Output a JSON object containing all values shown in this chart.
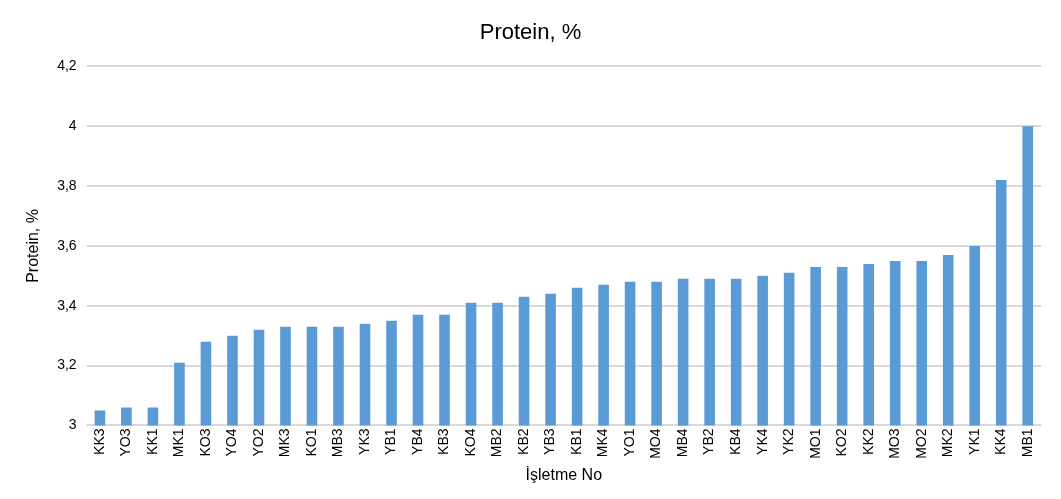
{
  "chart_data": {
    "type": "bar",
    "title": "Protein, %",
    "xlabel": "İşletme No",
    "ylabel": "Protein, %",
    "categories": [
      "KK3",
      "YO3",
      "KK1",
      "MK1",
      "KO3",
      "YO4",
      "YO2",
      "MK3",
      "KO1",
      "MB3",
      "YK3",
      "YB1",
      "YB4",
      "KB3",
      "KO4",
      "MB2",
      "KB2",
      "YB3",
      "KB1",
      "MK4",
      "YO1",
      "MO4",
      "MB4",
      "YB2",
      "KB4",
      "YK4",
      "YK2",
      "MO1",
      "KO2",
      "KK2",
      "MO3",
      "MO2",
      "MK2",
      "YK1",
      "KK4",
      "MB1"
    ],
    "values": [
      3.05,
      3.06,
      3.06,
      3.21,
      3.28,
      3.3,
      3.32,
      3.33,
      3.33,
      3.33,
      3.34,
      3.35,
      3.37,
      3.37,
      3.41,
      3.41,
      3.43,
      3.44,
      3.46,
      3.47,
      3.48,
      3.48,
      3.49,
      3.49,
      3.49,
      3.5,
      3.51,
      3.53,
      3.53,
      3.54,
      3.55,
      3.55,
      3.57,
      3.6,
      3.82,
      4.0
    ],
    "color": "#5b9bd5",
    "ylim": [
      3,
      4.2
    ],
    "yticks": [
      {
        "value": 3,
        "label": "3"
      },
      {
        "value": 3.2,
        "label": "3,2"
      },
      {
        "value": 3.4,
        "label": "3,4"
      },
      {
        "value": 3.6,
        "label": "3,6"
      },
      {
        "value": 3.8,
        "label": "3,8"
      },
      {
        "value": 4,
        "label": "4"
      },
      {
        "value": 4.2,
        "label": "4,2"
      }
    ],
    "grid": "y",
    "legend": false
  }
}
